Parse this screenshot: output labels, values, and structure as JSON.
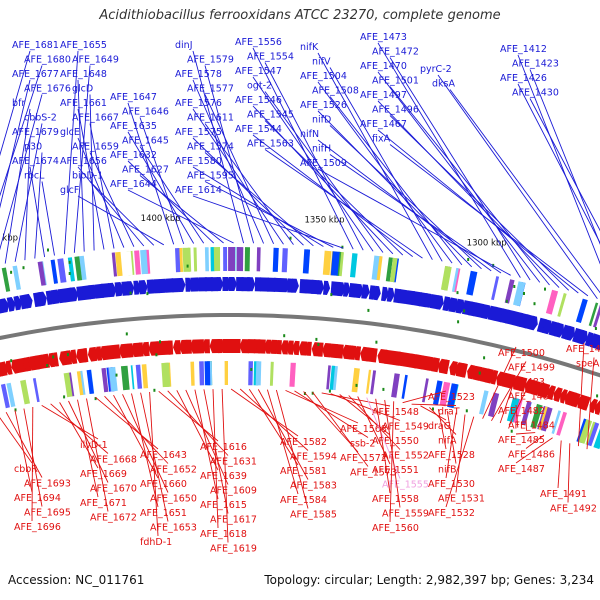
{
  "title": "Acidithiobacillus ferrooxidans ATCC 23270, complete genome",
  "accession": "Accession: NC_011761",
  "summary": "Topology: circular; Length: 2,982,397 bp; Genes: 3,234",
  "colors": {
    "forward": "#1a1ad6",
    "reverse": "#e01010",
    "highlight": "#f0a0e0",
    "backbone": "#777777",
    "tick": "#1a8a1a",
    "kbp_text": "#111111"
  },
  "kbp_labels": [
    "1250 kbp",
    "1300 kbp",
    "1350 kbp",
    "1400 kbp",
    "1450 kbp"
  ],
  "forward_labels": [
    "AFE_1681",
    "AFE_1680",
    "AFE_1677",
    "AFE_1676",
    "bfr",
    "cbbS-2",
    "AFE_1679",
    "p30",
    "AFE_1674",
    "rbcL",
    "AFE_1655",
    "AFE_1649",
    "AFE_1648",
    "glcD",
    "AFE_1661",
    "AFE_1667",
    "glcE",
    "AFE_1659",
    "AFE_1656",
    "bioD-1",
    "glcF",
    "AFE_1647",
    "AFE_1646",
    "AFE_1635",
    "AFE_1645",
    "AFE_1632",
    "AFE_1627",
    "AFE_1644",
    "dinJ",
    "AFE_1579",
    "AFE_1578",
    "AFE_1577",
    "AFE_1576",
    "AFE_1611",
    "AFE_1575",
    "AFE_1574",
    "AFE_1580",
    "AFE_1595",
    "AFE_1614",
    "AFE_1556",
    "AFE_1554",
    "AFE_1547",
    "ogt-2",
    "AFE_1546",
    "AFE_1545",
    "AFE_1544",
    "AFE_1563",
    "nifK",
    "nifV",
    "AFE_1504",
    "AFE_1508",
    "AFE_1526",
    "nifD",
    "nifN",
    "nifH",
    "AFE_1509",
    "AFE_1473",
    "AFE_1472",
    "AFE_1470",
    "AFE_1501",
    "AFE_1497",
    "AFE_1496",
    "AFE_1467",
    "fixA",
    "pyrC-2",
    "dksA",
    "AFE_1412",
    "AFE_1423",
    "AFE_1426",
    "AFE_1430"
  ],
  "reverse_labels": [
    "cbbR",
    "AFE_1693",
    "AFE_1694",
    "AFE_1695",
    "AFE_1696",
    "ilvD-1",
    "AFE_1668",
    "AFE_1669",
    "AFE_1670",
    "AFE_1671",
    "AFE_1672",
    "AFE_1643",
    "AFE_1652",
    "AFE_1660",
    "AFE_1650",
    "AFE_1651",
    "AFE_1653",
    "fdhD-1",
    "AFE_1616",
    "AFE_1631",
    "AFE_1639",
    "AFE_1609",
    "AFE_1615",
    "AFE_1617",
    "AFE_1618",
    "AFE_1619",
    "AFE_1582",
    "AFE_1594",
    "AFE_1581",
    "AFE_1583",
    "AFE_1584",
    "AFE_1585",
    "AFE_1568",
    "ssb-2",
    "AFE_1572",
    "AFE_1573",
    "AFE_1548",
    "AFE_1549",
    "AFE_1550",
    "AFE_1552",
    "AFE_1551",
    "AFE_1555",
    "AFE_1558",
    "AFE_1559",
    "AFE_1560",
    "AFE_1523",
    "draT",
    "draG",
    "nifA",
    "AFE_1528",
    "nifB",
    "AFE_1530",
    "AFE_1531",
    "AFE_1532",
    "AFE_1500",
    "AFE_1499",
    "AFE_1483",
    "AFE_1481",
    "AFE_1482",
    "AFE_1484",
    "AFE_1485",
    "AFE_1486",
    "AFE_1487",
    "AFE_1491",
    "AFE_1492",
    "AFE_1495",
    "speA",
    "tilS"
  ]
}
